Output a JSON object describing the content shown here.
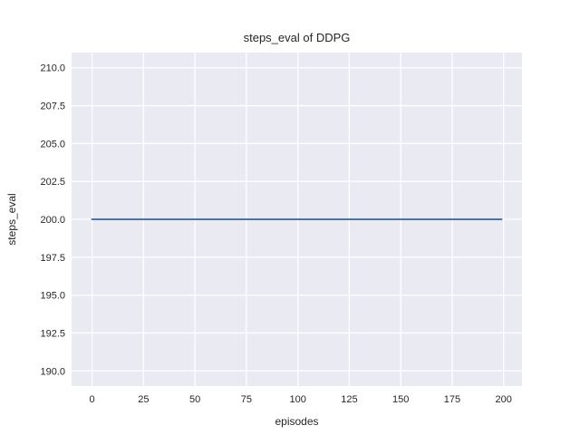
{
  "chart_data": {
    "type": "line",
    "title": "steps_eval of DDPG",
    "xlabel": "episodes",
    "ylabel": "steps_eval",
    "style": "seaborn-darkgrid",
    "grid": true,
    "legend": false,
    "xlim": [
      -9.95,
      208.95
    ],
    "ylim": [
      189,
      211
    ],
    "xticks": [
      0,
      25,
      50,
      75,
      100,
      125,
      150,
      175,
      200
    ],
    "xtick_labels": [
      "0",
      "25",
      "50",
      "75",
      "100",
      "125",
      "150",
      "175",
      "200"
    ],
    "yticks": [
      190.0,
      192.5,
      195.0,
      197.5,
      200.0,
      202.5,
      205.0,
      207.5,
      210.0
    ],
    "ytick_labels": [
      "190.0",
      "192.5",
      "195.0",
      "197.5",
      "200.0",
      "202.5",
      "205.0",
      "207.5",
      "210.0"
    ],
    "series": [
      {
        "name": "steps_eval",
        "color": "#4c72b0",
        "x": [
          0,
          199
        ],
        "y": [
          200,
          200
        ],
        "note": "constant line at 200 from episode 0 to 199"
      }
    ]
  },
  "colors": {
    "figure_bg": "#ffffff",
    "plot_bg": "#eaeaf2",
    "grid": "#ffffff",
    "text": "#262626",
    "line": "#4c72b0"
  }
}
